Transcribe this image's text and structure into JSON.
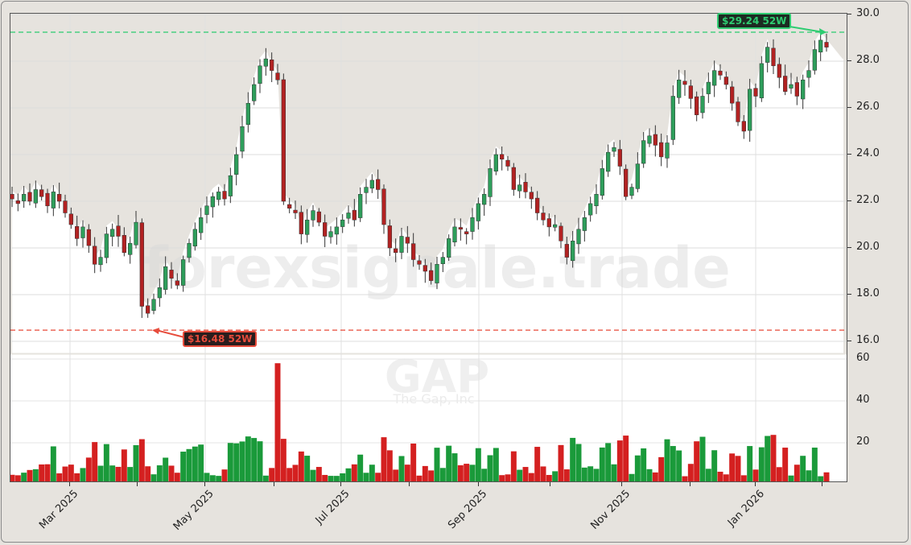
{
  "chart_data": {
    "type": "candlestick",
    "ticker": "GAP",
    "company": "The Gap, Inc",
    "watermark": "forexsignale.trade",
    "price_axis": {
      "ticks": [
        "30.0",
        "28.0",
        "26.0",
        "24.0",
        "22.0",
        "20.0",
        "18.0",
        "16.0"
      ],
      "ylim": [
        15.5,
        30.0
      ]
    },
    "volume_axis": {
      "ticks": [
        "60",
        "40",
        "20"
      ],
      "ylim": [
        0,
        62
      ]
    },
    "x_ticks": [
      "Mar 2025",
      "May 2025",
      "Jul 2025",
      "Sep 2025",
      "Nov 2025",
      "Jan 2026"
    ],
    "high_52w": {
      "label": "$29.24 52W",
      "value": 29.24,
      "color": "#2ecc71"
    },
    "low_52w": {
      "label": "$16.48 52W",
      "value": 16.48,
      "color": "#e74c3c"
    },
    "colors": {
      "up": "#1a9a3a",
      "down": "#d42020",
      "up_candle": "#2e9e5b",
      "down_candle": "#b22222",
      "shade": "#e6e3de"
    },
    "approx_close_series": [
      22.1,
      21.9,
      22.3,
      22.0,
      22.5,
      22.2,
      21.8,
      22.4,
      22.0,
      21.5,
      21.0,
      20.4,
      20.9,
      20.1,
      19.3,
      19.6,
      20.6,
      20.8,
      20.5,
      19.8,
      20.2,
      21.1,
      17.5,
      17.2,
      17.8,
      18.3,
      19.2,
      18.7,
      18.4,
      19.5,
      20.2,
      20.8,
      21.3,
      21.8,
      22.2,
      22.4,
      22.1,
      23.1,
      24.0,
      25.2,
      26.2,
      27.0,
      27.8,
      28.1,
      27.6,
      27.2,
      22.0,
      21.7,
      21.5,
      20.6,
      21.2,
      21.6,
      21.1,
      20.5,
      20.7,
      20.9,
      21.2,
      21.5,
      21.2,
      22.3,
      22.6,
      22.9,
      22.5,
      21.0,
      20.0,
      19.8,
      20.5,
      20.2,
      19.5,
      19.3,
      19.0,
      18.6,
      19.3,
      19.6,
      20.4,
      20.9,
      20.8,
      20.6,
      21.3,
      21.9,
      22.3,
      23.4,
      24.0,
      23.8,
      23.5,
      22.5,
      22.7,
      22.4,
      22.1,
      21.5,
      21.2,
      20.9,
      21.0,
      20.3,
      19.6,
      20.3,
      20.8,
      21.3,
      21.9,
      22.3,
      23.4,
      24.1,
      24.3,
      23.5,
      22.2,
      22.6,
      23.6,
      24.6,
      24.8,
      24.4,
      23.9,
      24.5,
      26.5,
      27.2,
      27.0,
      26.4,
      25.7,
      26.5,
      27.1,
      27.6,
      27.4,
      27.0,
      26.2,
      25.4,
      25.0,
      26.8,
      26.5,
      27.9,
      28.6,
      27.8,
      27.3,
      26.7,
      27.0,
      26.5,
      27.2,
      27.6,
      28.5,
      28.9,
      28.6
    ]
  }
}
